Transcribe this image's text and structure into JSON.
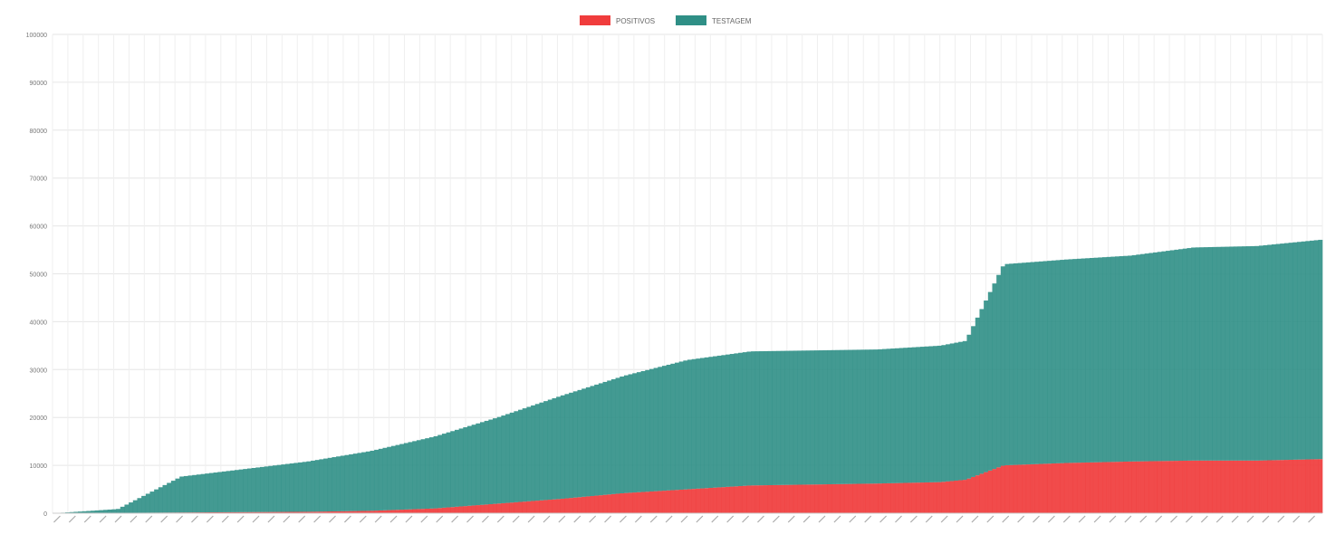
{
  "chart_data": {
    "type": "bar",
    "stacked": true,
    "title": "",
    "legend": {
      "position": "top",
      "items": [
        {
          "label": "POSITIVOS",
          "color": "#f03c3c"
        },
        {
          "label": "TESTAGEM",
          "color": "#2f8f86"
        }
      ]
    },
    "grid": true,
    "ylim": [
      0,
      100000
    ],
    "yticks": [
      0,
      10000,
      20000,
      30000,
      40000,
      50000,
      60000,
      70000,
      80000,
      90000,
      100000
    ],
    "xlabel": "",
    "ylabel": "",
    "xtick_count": 83,
    "series": [
      {
        "name": "POSITIVOS",
        "keyframes": [
          [
            0,
            0
          ],
          [
            20,
            300
          ],
          [
            25,
            500
          ],
          [
            30,
            1000
          ],
          [
            35,
            2000
          ],
          [
            40,
            3000
          ],
          [
            45,
            4200
          ],
          [
            50,
            5000
          ],
          [
            55,
            5800
          ],
          [
            60,
            6000
          ],
          [
            65,
            6200
          ],
          [
            70,
            6500
          ],
          [
            72,
            7000
          ],
          [
            75,
            10000
          ],
          [
            80,
            10500
          ],
          [
            85,
            10800
          ],
          [
            90,
            11000
          ],
          [
            95,
            11000
          ],
          [
            100,
            11300
          ]
        ]
      },
      {
        "name": "TESTAGEM",
        "keyframes": [
          [
            0,
            0
          ],
          [
            5,
            800
          ],
          [
            10,
            7500
          ],
          [
            15,
            9000
          ],
          [
            20,
            10500
          ],
          [
            25,
            12500
          ],
          [
            30,
            15000
          ],
          [
            35,
            18000
          ],
          [
            40,
            21500
          ],
          [
            45,
            24500
          ],
          [
            50,
            27000
          ],
          [
            55,
            28000
          ],
          [
            60,
            28000
          ],
          [
            65,
            28000
          ],
          [
            70,
            28500
          ],
          [
            72,
            29000
          ],
          [
            75,
            42000
          ],
          [
            80,
            42500
          ],
          [
            85,
            43000
          ],
          [
            90,
            44500
          ],
          [
            95,
            44800
          ],
          [
            100,
            45800
          ]
        ]
      }
    ]
  }
}
